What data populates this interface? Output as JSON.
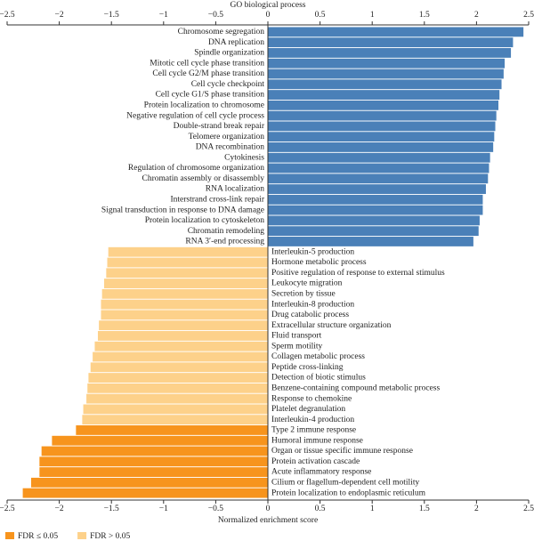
{
  "chart_data": {
    "type": "bar",
    "orientation": "horizontal",
    "title": "GO biological process",
    "xlabel": "Normalized enrichment score",
    "categories": [
      "Chromosome segregation",
      "DNA replication",
      "Spindle organization",
      "Mitotic cell cycle phase transition",
      "Cell cycle G2/M phase transition",
      "Cell cycle checkpoint",
      "Cell cycle G1/S phase transition",
      "Protein localization to chromosome",
      "Negative regulation of cell cycle process",
      "Double-strand break repair",
      "Telomere organization",
      "DNA recombination",
      "Cytokinesis",
      "Regulation of chromosome organization",
      "Chromatin assembly or disassembly",
      "RNA localization",
      "Interstrand cross-link repair",
      "Signal transduction in response to DNA damage",
      "Protein localization to cytoskeleton",
      "Chromatin remodeling",
      "RNA 3′-end processing",
      "Interleukin-5 production",
      "Hormone metabolic process",
      "Positive regulation of response to external stimulus",
      "Leukocyte migration",
      "Secretion by tissue",
      "Interleukin-8 production",
      "Drug catabolic process",
      "Extracellular structure organization",
      "Fluid transport",
      "Sperm motility",
      "Collagen metabolic process",
      "Peptide cross-linking",
      "Detection of biotic stimulus",
      "Benzene-containing compound metabolic process",
      "Response to chemokine",
      "Platelet degranulation",
      "Interleukin-4 production",
      "Type 2 immune response",
      "Humoral immune response",
      "Organ or tissue specific immune response",
      "Protein activation cascade",
      "Acute inflammatory response",
      "Cilium or flagellum-dependent cell motility",
      "Protein localization to endoplasmic reticulum"
    ],
    "values": [
      2.45,
      2.35,
      2.33,
      2.27,
      2.26,
      2.24,
      2.22,
      2.21,
      2.19,
      2.18,
      2.17,
      2.16,
      2.13,
      2.12,
      2.11,
      2.09,
      2.06,
      2.06,
      2.03,
      2.02,
      1.97,
      -1.53,
      -1.54,
      -1.55,
      -1.57,
      -1.59,
      -1.6,
      -1.6,
      -1.62,
      -1.63,
      -1.66,
      -1.68,
      -1.7,
      -1.72,
      -1.73,
      -1.74,
      -1.77,
      -1.78,
      -1.84,
      -2.07,
      -2.17,
      -2.19,
      -2.19,
      -2.27,
      -2.35
    ],
    "colors": [
      "#4a80b8",
      "#4a80b8",
      "#4a80b8",
      "#4a80b8",
      "#4a80b8",
      "#4a80b8",
      "#4a80b8",
      "#4a80b8",
      "#4a80b8",
      "#4a80b8",
      "#4a80b8",
      "#4a80b8",
      "#4a80b8",
      "#4a80b8",
      "#4a80b8",
      "#4a80b8",
      "#4a80b8",
      "#4a80b8",
      "#4a80b8",
      "#4a80b8",
      "#4a80b8",
      "#fdd18a",
      "#fdd18a",
      "#fdd18a",
      "#fdd18a",
      "#fdd18a",
      "#fdd18a",
      "#fdd18a",
      "#fdd18a",
      "#fdd18a",
      "#fdd18a",
      "#fdd18a",
      "#fdd18a",
      "#fdd18a",
      "#fdd18a",
      "#fdd18a",
      "#fdd18a",
      "#fdd18a",
      "#f7941d",
      "#f7941d",
      "#f7941d",
      "#f7941d",
      "#f7941d",
      "#f7941d",
      "#f7941d"
    ],
    "legend": [
      {
        "label": "FDR ≤ 0.05",
        "color": "#f7941d"
      },
      {
        "label": "FDR > 0.05",
        "color": "#fdd18a"
      }
    ],
    "xlim": [
      -2.5,
      2.5
    ],
    "xticks": [
      {
        "value": -2.5,
        "label": "−2.5"
      },
      {
        "value": -2,
        "label": "−2"
      },
      {
        "value": -1.5,
        "label": "−1.5"
      },
      {
        "value": -1,
        "label": "−1"
      },
      {
        "value": -0.5,
        "label": "−0.5"
      },
      0,
      0.5,
      1,
      1.5,
      2,
      2.5
    ]
  }
}
